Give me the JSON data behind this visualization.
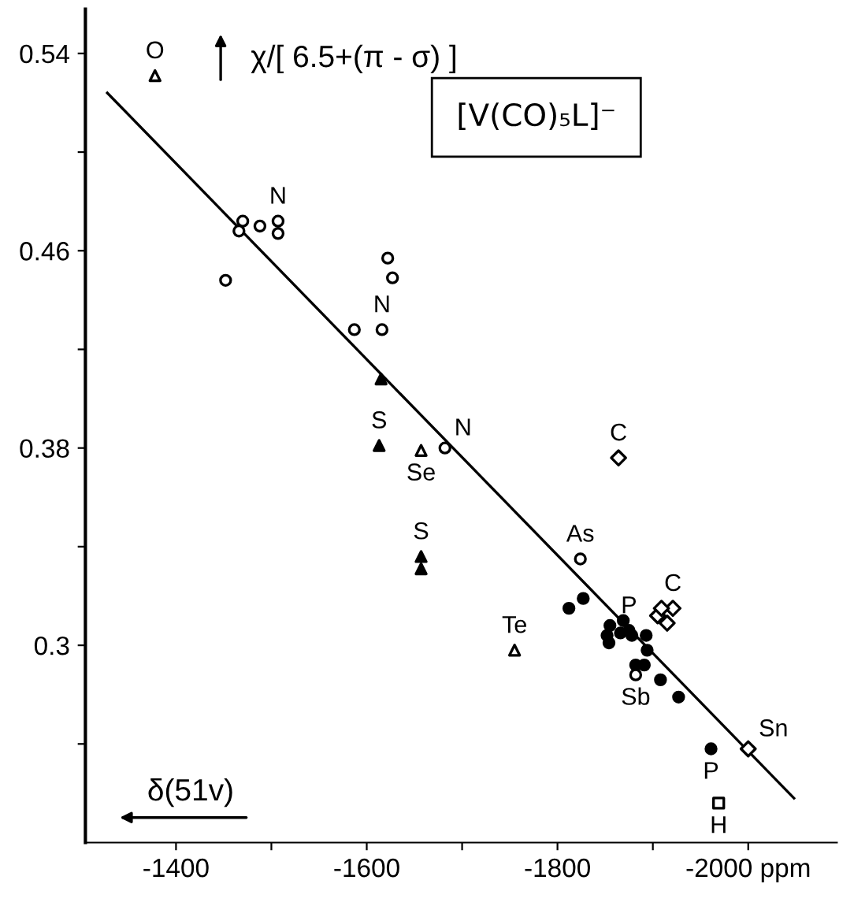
{
  "chart_data": {
    "type": "scatter",
    "title": "[V(CO)₅L]⁻",
    "xlabel": "δ(51v)",
    "ylabel": "χ/[ 6.5+(π - σ) ]",
    "xlim": [
      -1305,
      -2093
    ],
    "ylim": [
      0.22,
      0.558
    ],
    "xticks": [
      -1400,
      {
        "value": -1500,
        "label": null
      },
      -1600,
      {
        "value": -1700,
        "label": null
      },
      -1800,
      {
        "value": -1900,
        "label": null
      },
      {
        "value": -2000,
        "label": "-2000 ppm"
      }
    ],
    "yticks": [
      0.54,
      {
        "value": 0.5,
        "label": null
      },
      0.46,
      {
        "value": 0.42,
        "label": null
      },
      0.38,
      {
        "value": 0.34,
        "label": null
      },
      0.3,
      {
        "value": 0.26,
        "label": null
      }
    ],
    "grid": false,
    "legend": false,
    "series": [
      {
        "marker": "circle",
        "color": "#ffffff",
        "x": [
          -1452,
          -1466,
          -1470,
          -1488,
          -1507,
          -1507,
          -1587,
          -1616,
          -1622,
          -1627,
          -1682
        ],
        "values": [
          0.448,
          0.468,
          0.472,
          0.47,
          0.472,
          0.467,
          0.428,
          0.428,
          0.457,
          0.449,
          0.38
        ]
      },
      {
        "marker": "triangle",
        "color": "#000000",
        "x": [
          -1615,
          -1613,
          -1657,
          -1657
        ],
        "values": [
          0.408,
          0.381,
          0.336,
          0.331
        ]
      },
      {
        "marker": "triangle",
        "color": "#ffffff",
        "x": [
          -1378,
          -1657,
          -1755
        ],
        "values": [
          0.531,
          0.379,
          0.298
        ]
      },
      {
        "marker": "circle",
        "color": "#000000",
        "x": [
          -1827,
          -1812,
          -1855,
          -1852,
          -1869,
          -1866,
          -1875,
          -1878,
          -1854,
          -1893,
          -1894,
          -1882,
          -1891,
          -1908,
          -1927,
          -1961
        ],
        "values": [
          0.319,
          0.315,
          0.308,
          0.304,
          0.31,
          0.305,
          0.306,
          0.304,
          0.301,
          0.304,
          0.298,
          0.292,
          0.292,
          0.286,
          0.279,
          0.258
        ]
      },
      {
        "marker": "circle",
        "color": "#ffffff",
        "x": [
          -1824,
          -1882
        ],
        "values": [
          0.335,
          0.288
        ]
      },
      {
        "marker": "diamond",
        "color": "#ffffff",
        "x": [
          -1864,
          -1905,
          -1921,
          -1915,
          -1909,
          -2000
        ],
        "values": [
          0.376,
          0.312,
          0.315,
          0.309,
          0.315,
          0.258
        ]
      },
      {
        "marker": "square",
        "color": "#ffffff",
        "x": [
          -1969
        ],
        "values": [
          0.236
        ]
      },
      {
        "type": "line",
        "marker": "none",
        "line_style": "solid",
        "color": "#000000",
        "x": [
          -1328,
          -2048
        ],
        "values": [
          0.524,
          0.238
        ]
      }
    ],
    "annotations": [
      {
        "text": "O",
        "x": -1378,
        "y": 0.531
      },
      {
        "text": "N",
        "x": -1507,
        "y": 0.472
      },
      {
        "text": "N",
        "x": -1616,
        "y": 0.428
      },
      {
        "text": "S",
        "x": -1613,
        "y": 0.381
      },
      {
        "text": "Se",
        "x": -1657,
        "y": 0.379
      },
      {
        "text": "N",
        "x": -1682,
        "y": 0.38
      },
      {
        "text": "S",
        "x": -1657,
        "y": 0.336
      },
      {
        "text": "Te",
        "x": -1755,
        "y": 0.298
      },
      {
        "text": "C",
        "x": -1864,
        "y": 0.376
      },
      {
        "text": "As",
        "x": -1824,
        "y": 0.335
      },
      {
        "text": "P",
        "x": -1875,
        "y": 0.306
      },
      {
        "text": "Sb",
        "x": -1882,
        "y": 0.288
      },
      {
        "text": "C",
        "x": -1921,
        "y": 0.315
      },
      {
        "text": "P",
        "x": -1961,
        "y": 0.258
      },
      {
        "text": "Sn",
        "x": -2000,
        "y": 0.258
      },
      {
        "text": "H",
        "x": -1969,
        "y": 0.236
      }
    ]
  }
}
